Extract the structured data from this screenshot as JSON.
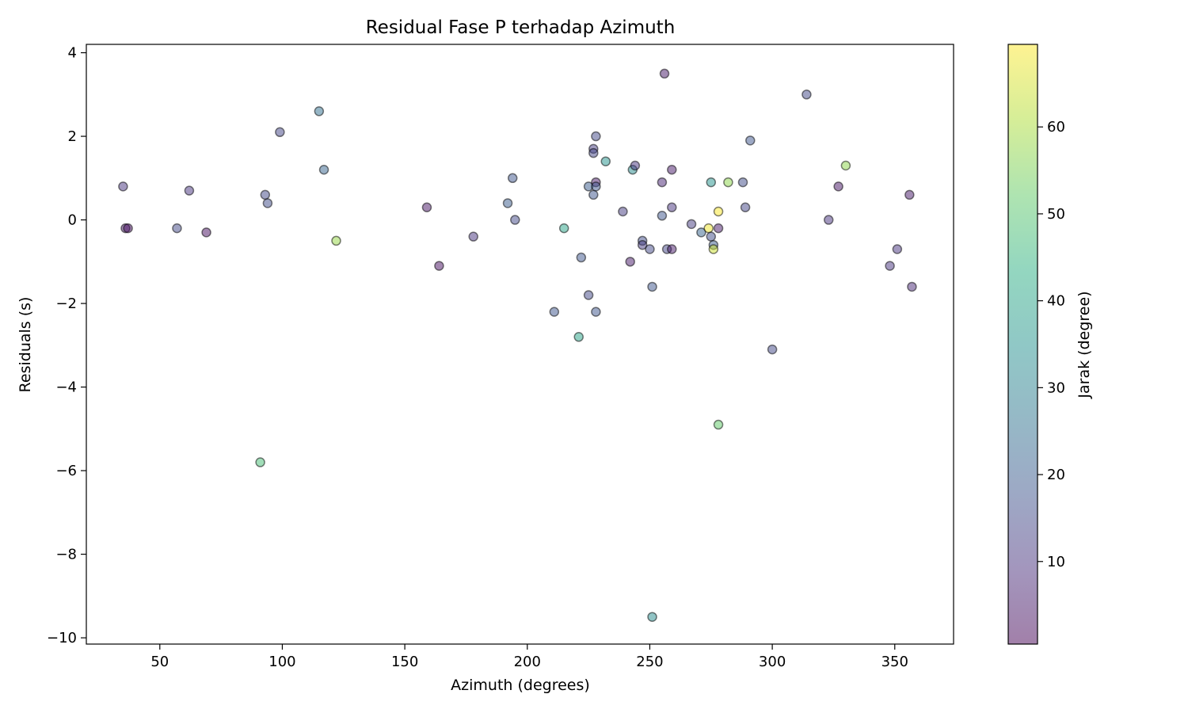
{
  "chart_data": {
    "type": "scatter",
    "title": "Residual Fase P terhadap Azimuth",
    "xlabel": "Azimuth (degrees)",
    "ylabel": "Residuals (s)",
    "xlim": [
      20,
      374
    ],
    "ylim": [
      -10.15,
      4.2
    ],
    "xticks": [
      50,
      100,
      150,
      200,
      250,
      300,
      350
    ],
    "yticks": [
      4,
      2,
      0,
      -2,
      -4,
      -6,
      -8,
      -10
    ],
    "ytick_labels": [
      "4",
      "2",
      "0",
      "−2",
      "−4",
      "−6",
      "−8",
      "−10"
    ],
    "grid": false,
    "colormap": "viridis",
    "marker_alpha": 0.5,
    "colorbar": {
      "label": "Jarak (degree)",
      "range": [
        0.5,
        69.5
      ],
      "ticks": [
        10,
        20,
        30,
        40,
        50,
        60
      ]
    },
    "points": [
      {
        "x": 35,
        "y": 0.8,
        "c": 10
      },
      {
        "x": 36,
        "y": -0.2,
        "c": 5
      },
      {
        "x": 37,
        "y": -0.2,
        "c": 3
      },
      {
        "x": 57,
        "y": -0.2,
        "c": 15
      },
      {
        "x": 62,
        "y": 0.7,
        "c": 10
      },
      {
        "x": 69,
        "y": -0.3,
        "c": 3
      },
      {
        "x": 91,
        "y": -5.8,
        "c": 48
      },
      {
        "x": 93,
        "y": 0.6,
        "c": 15
      },
      {
        "x": 94,
        "y": 0.4,
        "c": 16
      },
      {
        "x": 99,
        "y": 2.1,
        "c": 14
      },
      {
        "x": 115,
        "y": 2.6,
        "c": 25
      },
      {
        "x": 117,
        "y": 1.2,
        "c": 22
      },
      {
        "x": 122,
        "y": -0.5,
        "c": 58
      },
      {
        "x": 159,
        "y": 0.3,
        "c": 4
      },
      {
        "x": 164,
        "y": -1.1,
        "c": 3
      },
      {
        "x": 178,
        "y": -0.4,
        "c": 10
      },
      {
        "x": 192,
        "y": 0.4,
        "c": 20
      },
      {
        "x": 194,
        "y": 1.0,
        "c": 18
      },
      {
        "x": 195,
        "y": 0.0,
        "c": 15
      },
      {
        "x": 211,
        "y": -2.2,
        "c": 18
      },
      {
        "x": 215,
        "y": -0.2,
        "c": 40
      },
      {
        "x": 221,
        "y": -2.8,
        "c": 40
      },
      {
        "x": 222,
        "y": -0.9,
        "c": 18
      },
      {
        "x": 225,
        "y": -1.8,
        "c": 15
      },
      {
        "x": 225,
        "y": 0.8,
        "c": 20
      },
      {
        "x": 227,
        "y": 1.7,
        "c": 12
      },
      {
        "x": 227,
        "y": 1.6,
        "c": 14
      },
      {
        "x": 227,
        "y": 0.6,
        "c": 18
      },
      {
        "x": 228,
        "y": 2.0,
        "c": 15
      },
      {
        "x": 228,
        "y": 0.9,
        "c": 5
      },
      {
        "x": 228,
        "y": 0.8,
        "c": 18
      },
      {
        "x": 228,
        "y": -2.2,
        "c": 18
      },
      {
        "x": 232,
        "y": 1.4,
        "c": 35
      },
      {
        "x": 239,
        "y": 0.2,
        "c": 12
      },
      {
        "x": 242,
        "y": -1.0,
        "c": 5
      },
      {
        "x": 243,
        "y": 1.2,
        "c": 33
      },
      {
        "x": 244,
        "y": 1.3,
        "c": 10
      },
      {
        "x": 247,
        "y": -0.5,
        "c": 16
      },
      {
        "x": 247,
        "y": -0.6,
        "c": 12
      },
      {
        "x": 250,
        "y": -0.7,
        "c": 15
      },
      {
        "x": 251,
        "y": -1.6,
        "c": 18
      },
      {
        "x": 251,
        "y": -9.5,
        "c": 33
      },
      {
        "x": 255,
        "y": 0.9,
        "c": 7
      },
      {
        "x": 255,
        "y": 0.1,
        "c": 18
      },
      {
        "x": 256,
        "y": 3.5,
        "c": 5
      },
      {
        "x": 257,
        "y": -0.7,
        "c": 14
      },
      {
        "x": 259,
        "y": 1.2,
        "c": 5
      },
      {
        "x": 259,
        "y": 0.3,
        "c": 10
      },
      {
        "x": 259,
        "y": -0.7,
        "c": 5
      },
      {
        "x": 267,
        "y": -0.1,
        "c": 12
      },
      {
        "x": 271,
        "y": -0.3,
        "c": 22
      },
      {
        "x": 274,
        "y": -0.2,
        "c": 68
      },
      {
        "x": 275,
        "y": 0.9,
        "c": 35
      },
      {
        "x": 275,
        "y": -0.4,
        "c": 16
      },
      {
        "x": 276,
        "y": -0.6,
        "c": 20
      },
      {
        "x": 276,
        "y": -0.7,
        "c": 64
      },
      {
        "x": 278,
        "y": 0.2,
        "c": 69
      },
      {
        "x": 278,
        "y": -0.2,
        "c": 5
      },
      {
        "x": 278,
        "y": -4.9,
        "c": 52
      },
      {
        "x": 282,
        "y": 0.9,
        "c": 57
      },
      {
        "x": 288,
        "y": 0.9,
        "c": 16
      },
      {
        "x": 289,
        "y": 0.3,
        "c": 14
      },
      {
        "x": 291,
        "y": 1.9,
        "c": 18
      },
      {
        "x": 300,
        "y": -3.1,
        "c": 15
      },
      {
        "x": 314,
        "y": 3.0,
        "c": 15
      },
      {
        "x": 323,
        "y": 0.0,
        "c": 10
      },
      {
        "x": 327,
        "y": 0.8,
        "c": 4
      },
      {
        "x": 330,
        "y": 1.3,
        "c": 57
      },
      {
        "x": 348,
        "y": -1.1,
        "c": 10
      },
      {
        "x": 351,
        "y": -0.7,
        "c": 10
      },
      {
        "x": 356,
        "y": 0.6,
        "c": 5
      },
      {
        "x": 357,
        "y": -1.6,
        "c": 8
      }
    ]
  }
}
